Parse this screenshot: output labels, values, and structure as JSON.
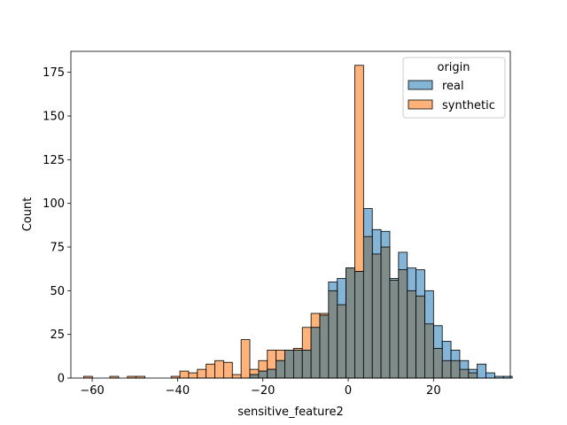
{
  "chart_data": {
    "type": "histogram",
    "title": "",
    "xlabel": "sensitive_feature2",
    "ylabel": "Count",
    "xlim": [
      -65,
      38
    ],
    "ylim": [
      0,
      187
    ],
    "xticks": [
      -60,
      -40,
      -20,
      0,
      20
    ],
    "yticks": [
      0,
      25,
      50,
      75,
      100,
      125,
      150,
      175
    ],
    "bin_width": 2.05,
    "bin_start": -62.0,
    "legend": {
      "title": "origin",
      "placement": "top-right"
    },
    "colors": {
      "real": "#1f77b4",
      "synthetic": "#ff7f0e",
      "overlap": "#7f8c8a"
    },
    "series": [
      {
        "name": "real",
        "counts": [
          0,
          0,
          0,
          0,
          0,
          0,
          0,
          0,
          0,
          0,
          0,
          0,
          0,
          0,
          0,
          0,
          0,
          0,
          0,
          2,
          4,
          5,
          10,
          16,
          16,
          16,
          29,
          36,
          55,
          57,
          63,
          61,
          97,
          85,
          84,
          57,
          72,
          63,
          62,
          50,
          30,
          21,
          16,
          10,
          5,
          8,
          3,
          1,
          1
        ]
      },
      {
        "name": "synthetic",
        "counts": [
          1,
          0,
          0,
          1,
          0,
          1,
          1,
          0,
          0,
          0,
          1,
          4,
          3,
          5,
          8,
          10,
          9,
          2,
          22,
          5,
          10,
          16,
          16,
          16,
          17,
          29,
          37,
          37,
          50,
          42,
          63,
          179,
          81,
          71,
          75,
          56,
          62,
          50,
          47,
          31,
          17,
          10,
          10,
          5,
          3,
          0,
          0,
          0,
          0
        ]
      }
    ]
  }
}
